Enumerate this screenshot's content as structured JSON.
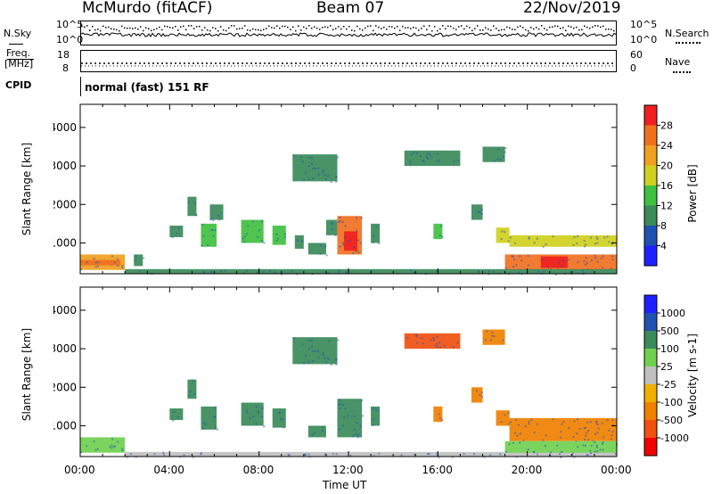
{
  "header": {
    "station": "McMurdo (fitACF)",
    "beam": "Beam 07",
    "date": "22/Nov/2019"
  },
  "left_labels": {
    "nsky": "N.Sky",
    "nsky_hi": "10^5",
    "nsky_lo": "10^0",
    "freq_line1": "Freq.",
    "freq_line2": "[MHz]",
    "freq_hi": "18",
    "freq_lo": "8",
    "cpid": "CPID"
  },
  "right_labels": {
    "nsearch": "N.Search",
    "nsearch_hi": "10^5",
    "nsearch_lo": "10^0",
    "nave": "Nave",
    "nave_hi": "60",
    "nave_lo": "0"
  },
  "cpid_text": "normal (fast) 151 RF",
  "x_axis": {
    "label": "Time UT",
    "ticks": [
      "00:00",
      "04:00",
      "08:00",
      "12:00",
      "16:00",
      "20:00",
      "00:00"
    ]
  },
  "colors": {
    "power": [
      "#2020ff",
      "#2050b0",
      "#3a8a5a",
      "#40c040",
      "#d0d020",
      "#f0a020",
      "#f07020",
      "#f02020"
    ],
    "velocity": [
      "#f00000",
      "#f05010",
      "#f08000",
      "#f0b000",
      "#c0c0c0",
      "#70d050",
      "#3a8a5a",
      "#2050b0",
      "#2020ff"
    ]
  },
  "chart_data": [
    {
      "type": "heatmap",
      "panel": "power",
      "xlabel": "Time UT",
      "ylabel": "Slant Range [km]",
      "xlim": [
        0,
        24
      ],
      "ylim": [
        200,
        4600
      ],
      "yticks": [
        1000,
        2000,
        3000,
        4000
      ],
      "colorbar": {
        "label": "Power [dB]",
        "ticks": [
          4,
          8,
          12,
          16,
          20,
          24,
          28
        ],
        "range": [
          0,
          32
        ]
      },
      "patches": [
        {
          "t": [
            0.0,
            2.0
          ],
          "r": [
            300,
            700
          ],
          "v": 22
        },
        {
          "t": [
            0.0,
            1.8
          ],
          "r": [
            420,
            560
          ],
          "v": 26
        },
        {
          "t": [
            2.0,
            12.5
          ],
          "r": [
            200,
            320
          ],
          "v": 8
        },
        {
          "t": [
            2.4,
            2.8
          ],
          "r": [
            400,
            700
          ],
          "v": 10
        },
        {
          "t": [
            4.0,
            4.6
          ],
          "r": [
            1150,
            1450
          ],
          "v": 11
        },
        {
          "t": [
            4.8,
            5.2
          ],
          "r": [
            1700,
            2200
          ],
          "v": 10
        },
        {
          "t": [
            5.4,
            6.1
          ],
          "r": [
            900,
            1500
          ],
          "v": 12
        },
        {
          "t": [
            5.8,
            6.4
          ],
          "r": [
            1600,
            2000
          ],
          "v": 9
        },
        {
          "t": [
            7.2,
            8.2
          ],
          "r": [
            1000,
            1600
          ],
          "v": 12
        },
        {
          "t": [
            8.6,
            9.2
          ],
          "r": [
            950,
            1450
          ],
          "v": 12
        },
        {
          "t": [
            9.6,
            10.0
          ],
          "r": [
            850,
            1200
          ],
          "v": 11
        },
        {
          "t": [
            10.2,
            11.0
          ],
          "r": [
            700,
            1000
          ],
          "v": 10
        },
        {
          "t": [
            11.0,
            11.5
          ],
          "r": [
            1200,
            1600
          ],
          "v": 10
        },
        {
          "t": [
            11.5,
            12.6
          ],
          "r": [
            700,
            1700
          ],
          "v": 26
        },
        {
          "t": [
            11.8,
            12.4
          ],
          "r": [
            800,
            1300
          ],
          "v": 30
        },
        {
          "t": [
            13.0,
            13.4
          ],
          "r": [
            1000,
            1500
          ],
          "v": 10
        },
        {
          "t": [
            9.5,
            11.5
          ],
          "r": [
            2600,
            3300
          ],
          "v": 8
        },
        {
          "t": [
            15.8,
            16.2
          ],
          "r": [
            1100,
            1500
          ],
          "v": 12
        },
        {
          "t": [
            17.5,
            18.0
          ],
          "r": [
            1600,
            2000
          ],
          "v": 10
        },
        {
          "t": [
            18.6,
            19.2
          ],
          "r": [
            1000,
            1400
          ],
          "v": 18
        },
        {
          "t": [
            19.2,
            24.0
          ],
          "r": [
            900,
            1200
          ],
          "v": 16
        },
        {
          "t": [
            19.0,
            24.0
          ],
          "r": [
            300,
            700
          ],
          "v": 24
        },
        {
          "t": [
            20.6,
            21.8
          ],
          "r": [
            350,
            650
          ],
          "v": 30
        },
        {
          "t": [
            12.5,
            24.0
          ],
          "r": [
            200,
            320
          ],
          "v": 10
        },
        {
          "t": [
            14.5,
            17.0
          ],
          "r": [
            3000,
            3400
          ],
          "v": 8
        },
        {
          "t": [
            18.0,
            19.0
          ],
          "r": [
            3100,
            3500
          ],
          "v": 8
        }
      ]
    },
    {
      "type": "heatmap",
      "panel": "velocity",
      "xlabel": "Time UT",
      "ylabel": "Slant Range [km]",
      "xlim": [
        0,
        24
      ],
      "ylim": [
        200,
        4600
      ],
      "yticks": [
        1000,
        2000,
        3000,
        4000
      ],
      "colorbar": {
        "label": "Velocity [m s-1]",
        "ticks": [
          -1000,
          -500,
          -100,
          -25,
          25,
          100,
          500,
          1000
        ]
      },
      "patches": [
        {
          "t": [
            0.0,
            2.0
          ],
          "r": [
            300,
            700
          ],
          "c": 5
        },
        {
          "t": [
            2.0,
            24.0
          ],
          "r": [
            200,
            320
          ],
          "c": 4
        },
        {
          "t": [
            4.0,
            4.6
          ],
          "r": [
            1150,
            1450
          ],
          "c": 6
        },
        {
          "t": [
            4.8,
            5.2
          ],
          "r": [
            1700,
            2200
          ],
          "c": 6
        },
        {
          "t": [
            5.4,
            6.1
          ],
          "r": [
            900,
            1500
          ],
          "c": 6
        },
        {
          "t": [
            7.2,
            8.2
          ],
          "r": [
            1000,
            1600
          ],
          "c": 6
        },
        {
          "t": [
            8.6,
            9.2
          ],
          "r": [
            950,
            1450
          ],
          "c": 6
        },
        {
          "t": [
            10.2,
            11.0
          ],
          "r": [
            700,
            1000
          ],
          "c": 6
        },
        {
          "t": [
            11.5,
            12.6
          ],
          "r": [
            700,
            1700
          ],
          "c": 6
        },
        {
          "t": [
            13.0,
            13.4
          ],
          "r": [
            1000,
            1500
          ],
          "c": 6
        },
        {
          "t": [
            9.5,
            11.5
          ],
          "r": [
            2600,
            3300
          ],
          "c": 6
        },
        {
          "t": [
            15.8,
            16.2
          ],
          "r": [
            1100,
            1500
          ],
          "c": 2
        },
        {
          "t": [
            17.5,
            18.0
          ],
          "r": [
            1600,
            2000
          ],
          "c": 2
        },
        {
          "t": [
            18.6,
            19.2
          ],
          "r": [
            1000,
            1400
          ],
          "c": 2
        },
        {
          "t": [
            19.2,
            24.0
          ],
          "r": [
            600,
            1200
          ],
          "c": 2
        },
        {
          "t": [
            19.0,
            24.0
          ],
          "r": [
            300,
            600
          ],
          "c": 5
        },
        {
          "t": [
            14.5,
            17.0
          ],
          "r": [
            3000,
            3400
          ],
          "c": 1
        },
        {
          "t": [
            18.0,
            19.0
          ],
          "r": [
            3100,
            3500
          ],
          "c": 2
        }
      ]
    }
  ]
}
